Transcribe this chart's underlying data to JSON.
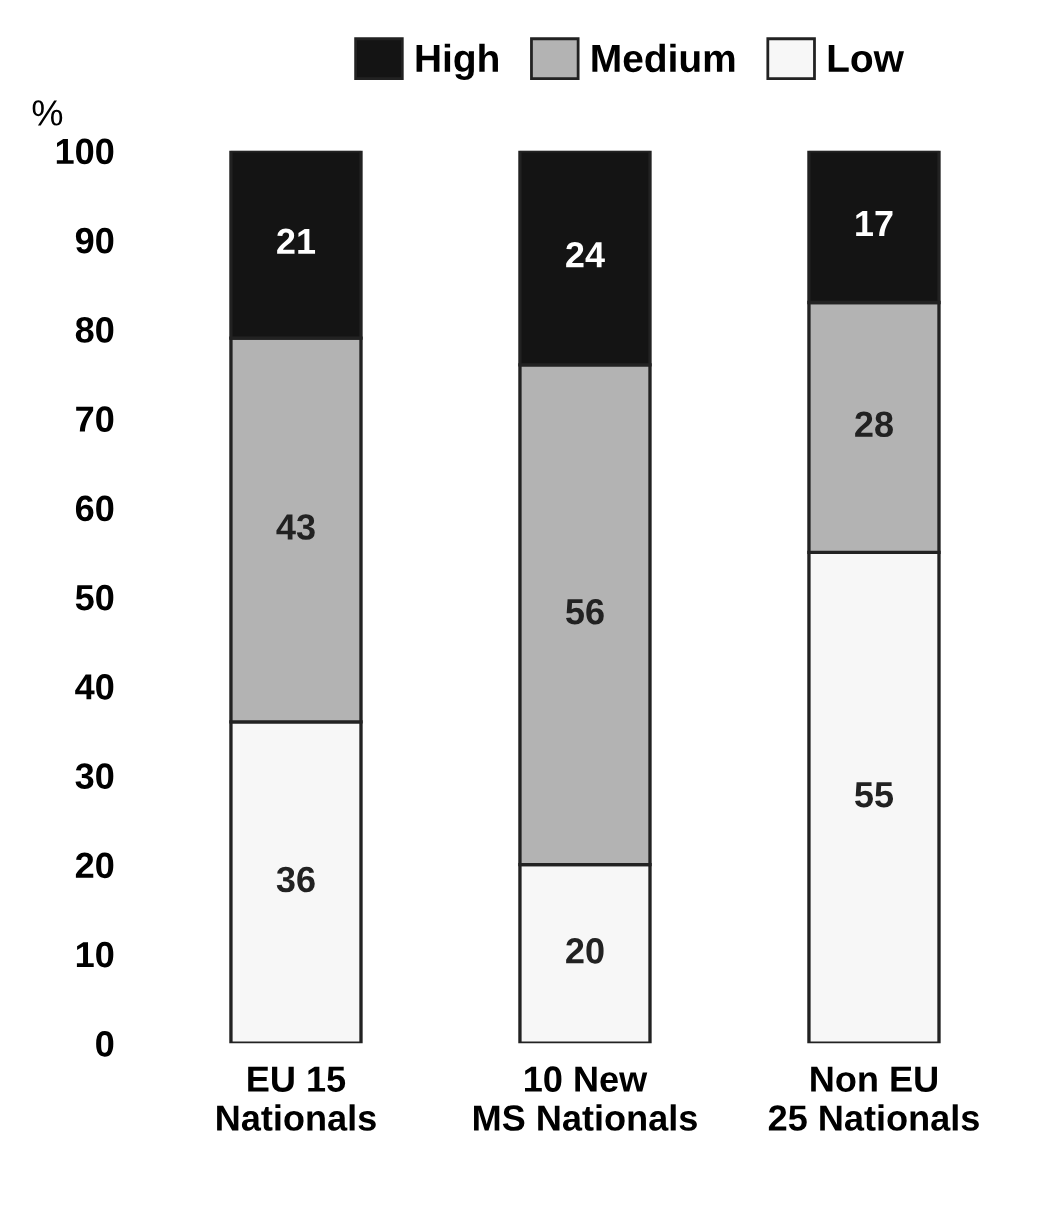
{
  "chart_data": {
    "type": "bar",
    "stacked": true,
    "categories": [
      "EU 15\nNationals",
      "10 New\nMS Nationals",
      "Non EU\n25 Nationals"
    ],
    "series": [
      {
        "name": "Low",
        "color": "#f7f7f7",
        "values": [
          36,
          20,
          55
        ]
      },
      {
        "name": "Medium",
        "color": "#b3b3b3",
        "values": [
          43,
          56,
          28
        ]
      },
      {
        "name": "High",
        "color": "#141414",
        "values": [
          21,
          24,
          17
        ]
      }
    ],
    "ylabel": "%",
    "ylim": [
      0,
      100
    ],
    "yticks": [
      0,
      10,
      20,
      30,
      40,
      50,
      60,
      70,
      80,
      90,
      100
    ],
    "data_labels": true,
    "legend": "top",
    "grid": false
  }
}
